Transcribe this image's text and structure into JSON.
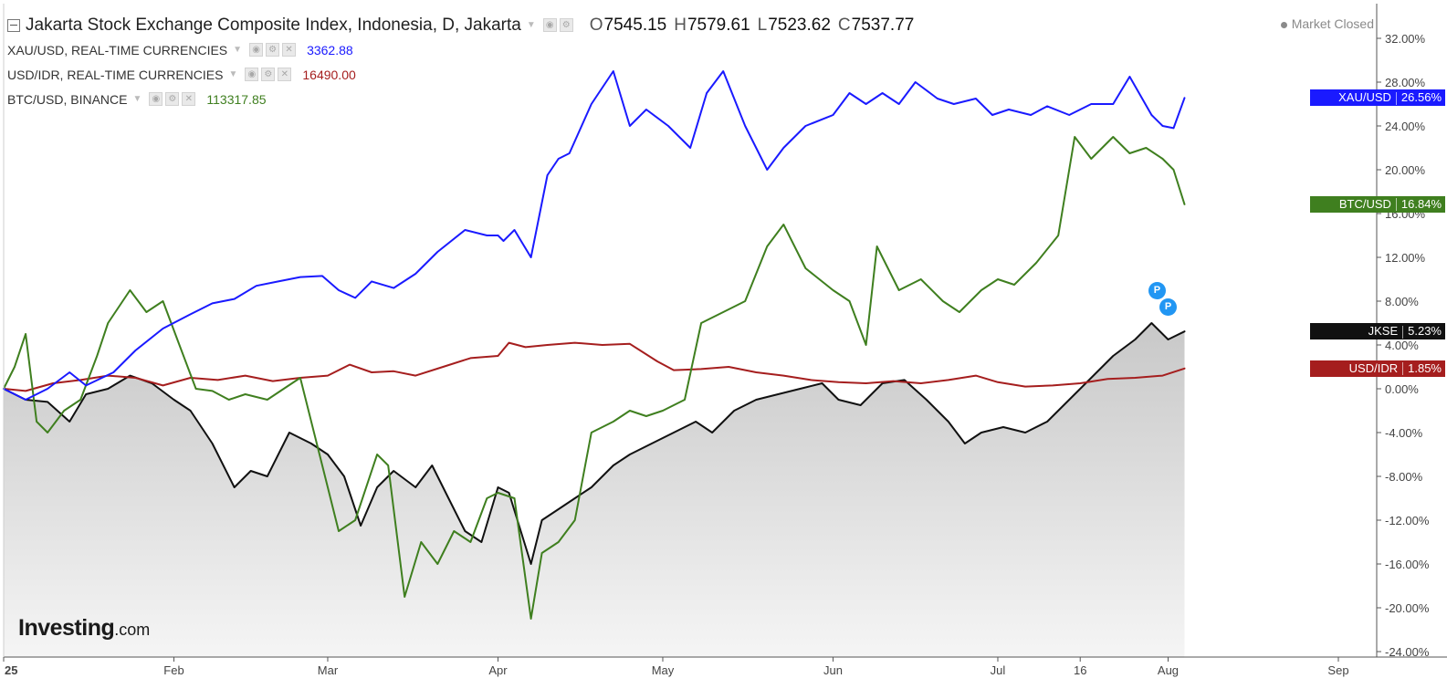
{
  "chart_data": {
    "type": "line",
    "title": "Jakarta Stock Exchange Composite Index, Indonesia, D, Jakarta",
    "ohlc": {
      "o_label": "O",
      "o": "7545.15",
      "h_label": "H",
      "h": "7579.61",
      "l_label": "L",
      "l": "7523.62",
      "c_label": "C",
      "c": "7537.77"
    },
    "status": "Market Closed",
    "y_axis": {
      "min": -24,
      "max": 33,
      "unit": "%",
      "ticks": [
        "32.00%",
        "28.00%",
        "24.00%",
        "20.00%",
        "16.00%",
        "12.00%",
        "8.00%",
        "4.00%",
        "0.00%",
        "-4.00%",
        "-8.00%",
        "-12.00%",
        "-16.00%",
        "-20.00%",
        "-24.00%"
      ],
      "tick_values": [
        32,
        28,
        24,
        20,
        16,
        12,
        8,
        4,
        0,
        -4,
        -8,
        -12,
        -16,
        -20,
        -24
      ]
    },
    "x_axis": {
      "start": "2025-01-01",
      "end": "2025-09-01",
      "labels": [
        {
          "text": "25",
          "date": "2025-01-01"
        },
        {
          "text": "Feb",
          "date": "2025-02-01"
        },
        {
          "text": "Mar",
          "date": "2025-03-01"
        },
        {
          "text": "Apr",
          "date": "2025-04-01"
        },
        {
          "text": "May",
          "date": "2025-05-01"
        },
        {
          "text": "Jun",
          "date": "2025-06-01"
        },
        {
          "text": "Jul",
          "date": "2025-07-01"
        },
        {
          "text": "16",
          "date": "2025-07-16"
        },
        {
          "text": "Aug",
          "date": "2025-08-01"
        },
        {
          "text": "Sep",
          "date": "2025-09-01"
        }
      ]
    },
    "grid": false,
    "series": [
      {
        "name": "XAU/USD",
        "legend": "XAU/USD, REAL-TIME CURRENCIES",
        "value": "3362.88",
        "color": "#1a1aff",
        "last_label": "26.56%",
        "points": [
          [
            "2025-01-01",
            0
          ],
          [
            "2025-01-05",
            -1
          ],
          [
            "2025-01-09",
            0
          ],
          [
            "2025-01-13",
            1.5
          ],
          [
            "2025-01-16",
            0.3
          ],
          [
            "2025-01-21",
            1.5
          ],
          [
            "2025-01-25",
            3.5
          ],
          [
            "2025-01-30",
            5.5
          ],
          [
            "2025-02-04",
            6.8
          ],
          [
            "2025-02-08",
            7.8
          ],
          [
            "2025-02-12",
            8.2
          ],
          [
            "2025-02-16",
            9.4
          ],
          [
            "2025-02-20",
            9.8
          ],
          [
            "2025-02-24",
            10.2
          ],
          [
            "2025-02-28",
            10.3
          ],
          [
            "2025-03-03",
            9
          ],
          [
            "2025-03-06",
            8.3
          ],
          [
            "2025-03-09",
            9.8
          ],
          [
            "2025-03-13",
            9.2
          ],
          [
            "2025-03-17",
            10.5
          ],
          [
            "2025-03-21",
            12.5
          ],
          [
            "2025-03-26",
            14.5
          ],
          [
            "2025-03-30",
            14
          ],
          [
            "2025-04-01",
            14
          ],
          [
            "2025-04-02",
            13.5
          ],
          [
            "2025-04-04",
            14.5
          ],
          [
            "2025-04-07",
            12
          ],
          [
            "2025-04-10",
            19.5
          ],
          [
            "2025-04-12",
            21
          ],
          [
            "2025-04-14",
            21.5
          ],
          [
            "2025-04-18",
            26
          ],
          [
            "2025-04-22",
            29
          ],
          [
            "2025-04-25",
            24
          ],
          [
            "2025-04-28",
            25.5
          ],
          [
            "2025-05-02",
            24
          ],
          [
            "2025-05-06",
            22
          ],
          [
            "2025-05-09",
            27
          ],
          [
            "2025-05-12",
            29
          ],
          [
            "2025-05-16",
            24
          ],
          [
            "2025-05-20",
            20
          ],
          [
            "2025-05-23",
            22
          ],
          [
            "2025-05-27",
            24
          ],
          [
            "2025-06-01",
            25
          ],
          [
            "2025-06-04",
            27
          ],
          [
            "2025-06-07",
            26
          ],
          [
            "2025-06-10",
            27
          ],
          [
            "2025-06-13",
            26
          ],
          [
            "2025-06-16",
            28
          ],
          [
            "2025-06-20",
            26.5
          ],
          [
            "2025-06-23",
            26
          ],
          [
            "2025-06-27",
            26.5
          ],
          [
            "2025-06-30",
            25
          ],
          [
            "2025-07-03",
            25.5
          ],
          [
            "2025-07-07",
            25
          ],
          [
            "2025-07-10",
            25.8
          ],
          [
            "2025-07-14",
            25
          ],
          [
            "2025-07-18",
            26
          ],
          [
            "2025-07-22",
            26
          ],
          [
            "2025-07-25",
            28.5
          ],
          [
            "2025-07-29",
            25
          ],
          [
            "2025-07-31",
            24
          ],
          [
            "2025-08-02",
            23.8
          ],
          [
            "2025-08-04",
            26.56
          ]
        ]
      },
      {
        "name": "USD/IDR",
        "legend": "USD/IDR, REAL-TIME CURRENCIES",
        "value": "16490.00",
        "color": "#a51e1e",
        "last_label": "1.85%",
        "points": [
          [
            "2025-01-01",
            0
          ],
          [
            "2025-01-05",
            -0.2
          ],
          [
            "2025-01-10",
            0.5
          ],
          [
            "2025-01-15",
            0.8
          ],
          [
            "2025-01-20",
            1.2
          ],
          [
            "2025-01-25",
            1.0
          ],
          [
            "2025-01-30",
            0.3
          ],
          [
            "2025-02-04",
            1.0
          ],
          [
            "2025-02-09",
            0.8
          ],
          [
            "2025-02-14",
            1.2
          ],
          [
            "2025-02-19",
            0.7
          ],
          [
            "2025-02-24",
            1.0
          ],
          [
            "2025-03-01",
            1.2
          ],
          [
            "2025-03-05",
            2.2
          ],
          [
            "2025-03-09",
            1.5
          ],
          [
            "2025-03-13",
            1.6
          ],
          [
            "2025-03-17",
            1.2
          ],
          [
            "2025-03-22",
            2.0
          ],
          [
            "2025-03-27",
            2.8
          ],
          [
            "2025-04-01",
            3.0
          ],
          [
            "2025-04-03",
            4.2
          ],
          [
            "2025-04-06",
            3.8
          ],
          [
            "2025-04-10",
            4.0
          ],
          [
            "2025-04-15",
            4.2
          ],
          [
            "2025-04-20",
            4.0
          ],
          [
            "2025-04-25",
            4.1
          ],
          [
            "2025-04-30",
            2.5
          ],
          [
            "2025-05-03",
            1.7
          ],
          [
            "2025-05-08",
            1.8
          ],
          [
            "2025-05-13",
            2.0
          ],
          [
            "2025-05-18",
            1.5
          ],
          [
            "2025-05-23",
            1.2
          ],
          [
            "2025-05-28",
            0.8
          ],
          [
            "2025-06-02",
            0.6
          ],
          [
            "2025-06-07",
            0.5
          ],
          [
            "2025-06-12",
            0.7
          ],
          [
            "2025-06-17",
            0.5
          ],
          [
            "2025-06-22",
            0.8
          ],
          [
            "2025-06-27",
            1.2
          ],
          [
            "2025-07-01",
            0.6
          ],
          [
            "2025-07-06",
            0.2
          ],
          [
            "2025-07-11",
            0.3
          ],
          [
            "2025-07-16",
            0.5
          ],
          [
            "2025-07-21",
            0.9
          ],
          [
            "2025-07-26",
            1.0
          ],
          [
            "2025-07-31",
            1.2
          ],
          [
            "2025-08-04",
            1.85
          ]
        ]
      },
      {
        "name": "BTC/USD",
        "legend": "BTC/USD, BINANCE",
        "value": "113317.85",
        "color": "#3f7f1f",
        "last_label": "16.84%",
        "points": [
          [
            "2025-01-01",
            0
          ],
          [
            "2025-01-03",
            2
          ],
          [
            "2025-01-05",
            5
          ],
          [
            "2025-01-07",
            -3
          ],
          [
            "2025-01-09",
            -4
          ],
          [
            "2025-01-12",
            -2
          ],
          [
            "2025-01-15",
            -1
          ],
          [
            "2025-01-18",
            3
          ],
          [
            "2025-01-20",
            6
          ],
          [
            "2025-01-24",
            9
          ],
          [
            "2025-01-27",
            7
          ],
          [
            "2025-01-30",
            8
          ],
          [
            "2025-02-02",
            4
          ],
          [
            "2025-02-05",
            0
          ],
          [
            "2025-02-08",
            -0.2
          ],
          [
            "2025-02-11",
            -1
          ],
          [
            "2025-02-14",
            -0.5
          ],
          [
            "2025-02-18",
            -1
          ],
          [
            "2025-02-21",
            0
          ],
          [
            "2025-02-24",
            1
          ],
          [
            "2025-02-28",
            -7
          ],
          [
            "2025-03-03",
            -13
          ],
          [
            "2025-03-06",
            -12
          ],
          [
            "2025-03-10",
            -6
          ],
          [
            "2025-03-12",
            -7
          ],
          [
            "2025-03-15",
            -19
          ],
          [
            "2025-03-18",
            -14
          ],
          [
            "2025-03-21",
            -16
          ],
          [
            "2025-03-24",
            -13
          ],
          [
            "2025-03-27",
            -14
          ],
          [
            "2025-03-30",
            -10
          ],
          [
            "2025-04-01",
            -9.5
          ],
          [
            "2025-04-04",
            -10
          ],
          [
            "2025-04-07",
            -21
          ],
          [
            "2025-04-09",
            -15
          ],
          [
            "2025-04-12",
            -14
          ],
          [
            "2025-04-15",
            -12
          ],
          [
            "2025-04-18",
            -4
          ],
          [
            "2025-04-22",
            -3
          ],
          [
            "2025-04-25",
            -2
          ],
          [
            "2025-04-28",
            -2.5
          ],
          [
            "2025-05-01",
            -2
          ],
          [
            "2025-05-05",
            -1
          ],
          [
            "2025-05-08",
            6
          ],
          [
            "2025-05-12",
            7
          ],
          [
            "2025-05-16",
            8
          ],
          [
            "2025-05-20",
            13
          ],
          [
            "2025-05-23",
            15
          ],
          [
            "2025-05-27",
            11
          ],
          [
            "2025-06-01",
            9
          ],
          [
            "2025-06-04",
            8
          ],
          [
            "2025-06-07",
            4
          ],
          [
            "2025-06-09",
            13
          ],
          [
            "2025-06-13",
            9
          ],
          [
            "2025-06-17",
            10
          ],
          [
            "2025-06-21",
            8
          ],
          [
            "2025-06-24",
            7
          ],
          [
            "2025-06-28",
            9
          ],
          [
            "2025-07-01",
            10
          ],
          [
            "2025-07-04",
            9.5
          ],
          [
            "2025-07-08",
            11.5
          ],
          [
            "2025-07-12",
            14
          ],
          [
            "2025-07-15",
            23
          ],
          [
            "2025-07-18",
            21
          ],
          [
            "2025-07-22",
            23
          ],
          [
            "2025-07-25",
            21.5
          ],
          [
            "2025-07-28",
            22
          ],
          [
            "2025-07-31",
            21
          ],
          [
            "2025-08-02",
            20
          ],
          [
            "2025-08-04",
            16.84
          ]
        ]
      },
      {
        "name": "JKSE",
        "legend": "",
        "value": "",
        "color": "#111111",
        "last_label": "5.23%",
        "points": [
          [
            "2025-01-01",
            0
          ],
          [
            "2025-01-05",
            -1
          ],
          [
            "2025-01-09",
            -1.2
          ],
          [
            "2025-01-13",
            -3
          ],
          [
            "2025-01-16",
            -0.5
          ],
          [
            "2025-01-20",
            0
          ],
          [
            "2025-01-24",
            1.2
          ],
          [
            "2025-01-28",
            0.5
          ],
          [
            "2025-02-01",
            -1
          ],
          [
            "2025-02-04",
            -2
          ],
          [
            "2025-02-08",
            -5
          ],
          [
            "2025-02-12",
            -9
          ],
          [
            "2025-02-15",
            -7.5
          ],
          [
            "2025-02-18",
            -8
          ],
          [
            "2025-02-22",
            -4
          ],
          [
            "2025-02-26",
            -5
          ],
          [
            "2025-03-01",
            -6
          ],
          [
            "2025-03-04",
            -8
          ],
          [
            "2025-03-07",
            -12.5
          ],
          [
            "2025-03-10",
            -9
          ],
          [
            "2025-03-13",
            -7.5
          ],
          [
            "2025-03-17",
            -9
          ],
          [
            "2025-03-20",
            -7
          ],
          [
            "2025-03-23",
            -10
          ],
          [
            "2025-03-26",
            -13
          ],
          [
            "2025-03-29",
            -14
          ],
          [
            "2025-04-01",
            -9
          ],
          [
            "2025-04-03",
            -9.5
          ],
          [
            "2025-04-07",
            -16
          ],
          [
            "2025-04-09",
            -12
          ],
          [
            "2025-04-12",
            -11
          ],
          [
            "2025-04-15",
            -10
          ],
          [
            "2025-04-18",
            -9
          ],
          [
            "2025-04-22",
            -7
          ],
          [
            "2025-04-25",
            -6
          ],
          [
            "2025-04-29",
            -5
          ],
          [
            "2025-05-03",
            -4
          ],
          [
            "2025-05-07",
            -3
          ],
          [
            "2025-05-10",
            -4
          ],
          [
            "2025-05-14",
            -2
          ],
          [
            "2025-05-18",
            -1
          ],
          [
            "2025-05-22",
            -0.5
          ],
          [
            "2025-05-26",
            0
          ],
          [
            "2025-05-30",
            0.5
          ],
          [
            "2025-06-02",
            -1
          ],
          [
            "2025-06-06",
            -1.5
          ],
          [
            "2025-06-10",
            0.5
          ],
          [
            "2025-06-14",
            0.8
          ],
          [
            "2025-06-18",
            -1
          ],
          [
            "2025-06-22",
            -3
          ],
          [
            "2025-06-25",
            -5
          ],
          [
            "2025-06-28",
            -4
          ],
          [
            "2025-07-02",
            -3.5
          ],
          [
            "2025-07-06",
            -4
          ],
          [
            "2025-07-10",
            -3
          ],
          [
            "2025-07-14",
            -1
          ],
          [
            "2025-07-18",
            1
          ],
          [
            "2025-07-22",
            3
          ],
          [
            "2025-07-26",
            4.5
          ],
          [
            "2025-07-29",
            6
          ],
          [
            "2025-08-01",
            4.5
          ],
          [
            "2025-08-04",
            5.23
          ]
        ]
      }
    ],
    "annotations": [
      {
        "text": "P",
        "date": "2025-07-30",
        "y": 9
      },
      {
        "text": "P",
        "date": "2025-08-01",
        "y": 7.5
      }
    ]
  },
  "branding": {
    "logo_main": "Investing",
    "logo_sub": ".com"
  }
}
